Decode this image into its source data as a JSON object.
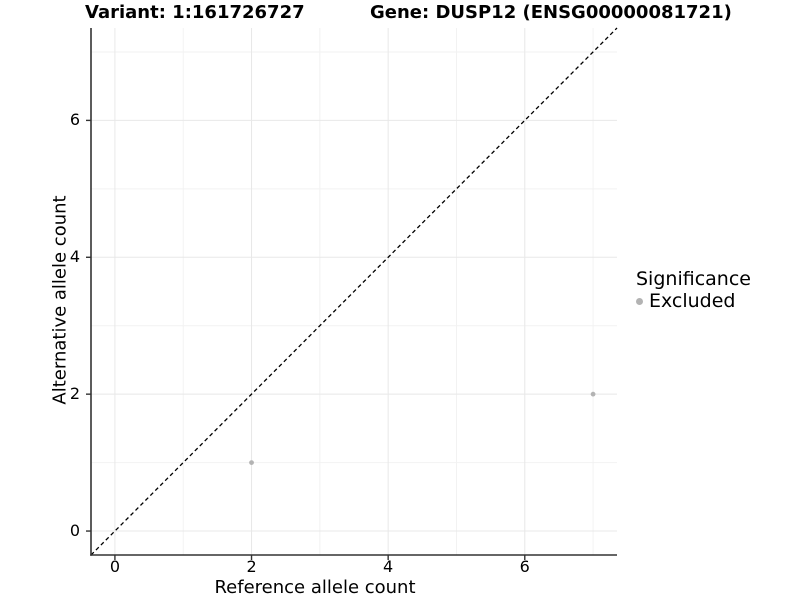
{
  "chart_data": {
    "type": "scatter",
    "titles": {
      "left": "Variant: 1:161726727",
      "right": "Gene: DUSP12 (ENSG00000081721)"
    },
    "xlabel": "Reference allele count",
    "ylabel": "Alternative allele count",
    "xlim": [
      -0.35,
      7.35
    ],
    "ylim": [
      -0.35,
      7.35
    ],
    "x_ticks": [
      0,
      2,
      4,
      6
    ],
    "y_ticks": [
      0,
      2,
      4,
      6
    ],
    "grid": {
      "major": [
        0,
        2,
        4,
        6
      ],
      "minor": [
        1,
        3,
        5,
        7
      ]
    },
    "reference_line": {
      "equation": "y = x",
      "style": "dashed",
      "color": "#000000"
    },
    "series": [
      {
        "name": "Excluded",
        "color": "#b3b3b3",
        "points": [
          {
            "x": 2,
            "y": 1
          },
          {
            "x": 7,
            "y": 2
          }
        ]
      }
    ],
    "legend": {
      "title": "Significance",
      "position": "right",
      "entries": [
        {
          "label": "Excluded",
          "color": "#b3b3b3"
        }
      ]
    }
  },
  "colors": {
    "background": "#ffffff",
    "text": "#000000",
    "axis": "#333333",
    "grid_major": "#e8e8e8",
    "grid_minor": "#f2f2f2"
  }
}
